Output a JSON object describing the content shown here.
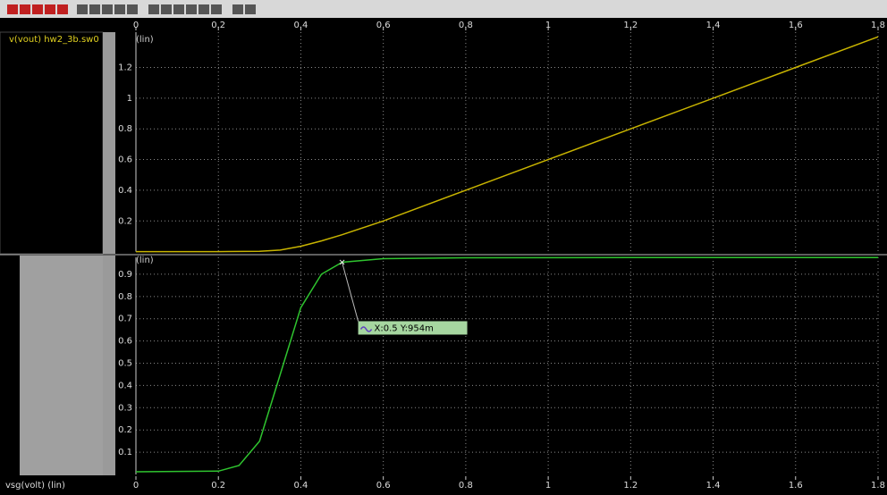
{
  "chart_data": [
    {
      "type": "line",
      "x": [
        0,
        0.2,
        0.3,
        0.35,
        0.4,
        0.45,
        0.5,
        0.6,
        0.8,
        1.0,
        1.2,
        1.4,
        1.6,
        1.8
      ],
      "series": [
        {
          "name": "v(vout) hw2_3b.sw0",
          "color": "#c8b400",
          "values": [
            0,
            0,
            0.002,
            0.01,
            0.035,
            0.07,
            0.11,
            0.2,
            0.4,
            0.6,
            0.8,
            1.0,
            1.2,
            1.4
          ]
        }
      ],
      "y_scale_label": "(lin)",
      "xlim": [
        0,
        1.8
      ],
      "xticks": [
        0,
        0.2,
        0.4,
        0.6,
        0.8,
        1,
        1.2,
        1.4,
        1.6,
        1.8
      ],
      "ylim": [
        0,
        1.43
      ],
      "yticks": [
        0.2,
        0.4,
        0.6,
        0.8,
        1,
        1.2
      ],
      "grid": true
    },
    {
      "type": "line",
      "x": [
        0,
        0.2,
        0.25,
        0.3,
        0.35,
        0.4,
        0.45,
        0.5,
        0.6,
        0.8,
        1.2,
        1.8
      ],
      "series": [
        {
          "color": "#2fc42f",
          "values": [
            0.012,
            0.015,
            0.04,
            0.15,
            0.45,
            0.75,
            0.9,
            0.954,
            0.97,
            0.974,
            0.975,
            0.975
          ]
        }
      ],
      "y_scale_label": "(lin)",
      "x_axis_label": "vsg(volt) (lin)",
      "xlim": [
        0,
        1.8
      ],
      "xticks": [
        0,
        0.2,
        0.4,
        0.6,
        0.8,
        1,
        1.2,
        1.4,
        1.6,
        1.8
      ],
      "ylim": [
        0,
        0.976
      ],
      "yticks": [
        0.1,
        0.2,
        0.3,
        0.4,
        0.5,
        0.6,
        0.7,
        0.8,
        0.9
      ],
      "grid": true,
      "annotation": {
        "text": "X:0.5 Y:954m",
        "x": 0.5,
        "y": 0.954
      }
    }
  ]
}
